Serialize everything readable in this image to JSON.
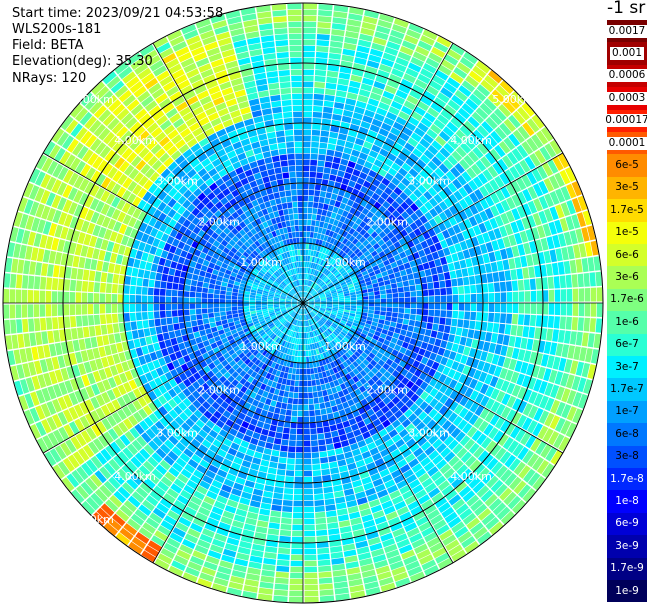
{
  "info": {
    "start_time": "Start time: 2023/09/21 04:53:58",
    "instrument": "WLS200s-181",
    "field": "Field: BETA",
    "elevation": "Elevation(deg): 35.30",
    "nrays": "NRays: 120"
  },
  "colorbar": {
    "title": "-1 sr",
    "levels": [
      {
        "label": "0.0017",
        "color": "#7a0000",
        "label_bg": "#ffffff",
        "label_color": "#000000"
      },
      {
        "label": "0.001",
        "color": "#a00000",
        "label_bg": "#ffffff",
        "label_color": "#000000"
      },
      {
        "label": "0.0006",
        "color": "#c40000",
        "label_bg": "#ffffff",
        "label_color": "#000000"
      },
      {
        "label": "0.0003",
        "color": "#e80000",
        "label_bg": "#ffffff",
        "label_color": "#000000"
      },
      {
        "label": "0.00017",
        "color": "#ff1f00",
        "label_bg": "#ffffff",
        "label_color": "#000000"
      },
      {
        "label": "0.0001",
        "color": "#ff5a00",
        "label_bg": "#ffffff",
        "label_color": "#000000"
      },
      {
        "label": "6e-5",
        "color": "#ff8c00",
        "label_bg": "",
        "label_color": "#000000"
      },
      {
        "label": "3e-5",
        "color": "#ffb400",
        "label_bg": "",
        "label_color": "#000000"
      },
      {
        "label": "1.7e-5",
        "color": "#ffdc00",
        "label_bg": "",
        "label_color": "#000000"
      },
      {
        "label": "1e-5",
        "color": "#f5ff0a",
        "label_bg": "",
        "label_color": "#000000"
      },
      {
        "label": "6e-6",
        "color": "#d4ff2a",
        "label_bg": "",
        "label_color": "#000000"
      },
      {
        "label": "3e-6",
        "color": "#aaff55",
        "label_bg": "",
        "label_color": "#000000"
      },
      {
        "label": "1.7e-6",
        "color": "#7fff80",
        "label_bg": "",
        "label_color": "#000000"
      },
      {
        "label": "1e-6",
        "color": "#55ffaa",
        "label_bg": "",
        "label_color": "#000000"
      },
      {
        "label": "6e-7",
        "color": "#2affd4",
        "label_bg": "",
        "label_color": "#000000"
      },
      {
        "label": "3e-7",
        "color": "#00f0ff",
        "label_bg": "",
        "label_color": "#000000"
      },
      {
        "label": "1.7e-7",
        "color": "#00c8ff",
        "label_bg": "",
        "label_color": "#000000"
      },
      {
        "label": "1e-7",
        "color": "#00a0ff",
        "label_bg": "",
        "label_color": "#000000"
      },
      {
        "label": "6e-8",
        "color": "#0078ff",
        "label_bg": "",
        "label_color": "#000000"
      },
      {
        "label": "3e-8",
        "color": "#0050ff",
        "label_bg": "",
        "label_color": "#000000"
      },
      {
        "label": "1.7e-8",
        "color": "#0028ff",
        "label_bg": "",
        "label_color": "#ffffff"
      },
      {
        "label": "1e-8",
        "color": "#0000ff",
        "label_bg": "",
        "label_color": "#ffffff"
      },
      {
        "label": "6e-9",
        "color": "#0000d6",
        "label_bg": "",
        "label_color": "#ffffff"
      },
      {
        "label": "3e-9",
        "color": "#0000ad",
        "label_bg": "",
        "label_color": "#ffffff"
      },
      {
        "label": "1.7e-9",
        "color": "#000085",
        "label_bg": "",
        "label_color": "#ffffff"
      },
      {
        "label": "1e-9",
        "color": "#00005a",
        "label_bg": "",
        "label_color": "#ffffff"
      }
    ]
  },
  "chart_data": {
    "type": "heatmap",
    "projection": "polar PPI",
    "field": "BETA",
    "elevation_deg": 35.3,
    "nrays": 120,
    "range_ring_unit": "km",
    "range_rings_km": [
      1,
      2,
      3,
      4,
      5
    ],
    "max_range_km": 5.0,
    "range_labels_upper": [
      "1.00km",
      "1.00km",
      "2.00km",
      "2.00km",
      "3.00km",
      "3.00km",
      "4.00km",
      "4.00km",
      "5.00km",
      "5.00km"
    ],
    "range_labels_lower": [
      "1.00km",
      "1.00km",
      "2.00km",
      "2.00km",
      "3.00km",
      "3.00km",
      "4.00km",
      "4.00km",
      "5.00km"
    ],
    "azimuth_spokes_deg": [
      0,
      30,
      60,
      90,
      120,
      150,
      180,
      210,
      240,
      270,
      300,
      330
    ],
    "approx_field_by_range_km": [
      {
        "range_km": [
          0.0,
          1.0
        ],
        "beta": "1.7e-7"
      },
      {
        "range_km": [
          1.0,
          2.0
        ],
        "beta": "6e-8"
      },
      {
        "range_km": [
          2.0,
          2.5
        ],
        "beta": "3e-8"
      },
      {
        "range_km": [
          2.5,
          3.5
        ],
        "beta": "1.7e-7"
      },
      {
        "range_km": [
          3.5,
          4.5
        ],
        "beta": "6e-7"
      },
      {
        "range_km": [
          4.5,
          5.0
        ],
        "beta": "1.7e-6"
      }
    ],
    "enhanced_sectors": [
      {
        "azimuth_deg": [
          235,
          300
        ],
        "range_km": [
          3.0,
          4.8
        ],
        "beta": "3e-6"
      },
      {
        "azimuth_deg": [
          300,
          345
        ],
        "range_km": [
          3.2,
          4.7
        ],
        "beta": "6e-6"
      },
      {
        "azimuth_deg": [
          210,
          225
        ],
        "range_km": [
          4.7,
          5.0
        ],
        "beta": "6e-5"
      },
      {
        "azimuth_deg": [
          35,
          55
        ],
        "range_km": [
          4.75,
          5.0
        ],
        "beta": "1e-5"
      },
      {
        "azimuth_deg": [
          60,
          80
        ],
        "range_km": [
          4.8,
          5.0
        ],
        "beta": "1.7e-5"
      }
    ]
  }
}
